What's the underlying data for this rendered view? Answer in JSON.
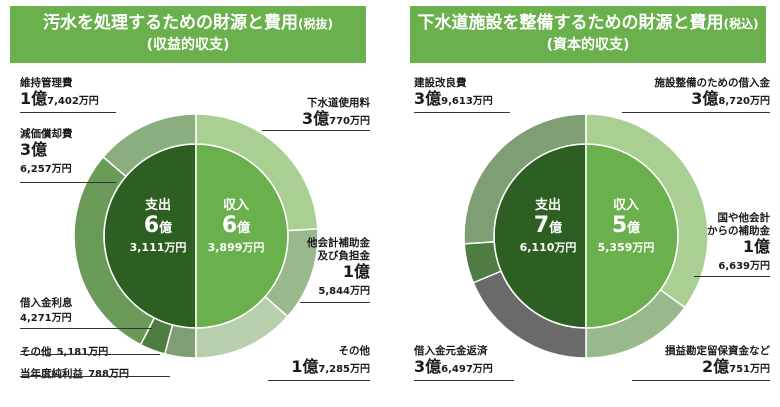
{
  "left_panel": {
    "title_main": "汚水を処理するための財源と費用",
    "title_tax": "(税抜)",
    "title_sub": "(収益的収支)",
    "expense_center": {
      "label": "支出",
      "oku": "6",
      "oku_unit": "億",
      "man": "3,111万円"
    },
    "income_center": {
      "label": "収入",
      "oku": "6",
      "oku_unit": "億",
      "man": "3,899万円"
    },
    "labels": {
      "maint_name": "維持管理費",
      "maint_oku": "1億",
      "maint_man": "7,402万円",
      "depr_name": "減価償却費",
      "depr_oku": "3億",
      "depr_man": "6,257万円",
      "loan_interest_name": "借入金利息",
      "loan_interest_man": "4,271万円",
      "other_exp_name": "その他",
      "other_exp_man": "5,181万円",
      "profit_name": "当年度純利益",
      "profit_man": "788万円",
      "sewer_fee_name": "下水道使用料",
      "sewer_fee_oku": "3億",
      "sewer_fee_man": "770万円",
      "subsidy_name1": "他会計補助金",
      "subsidy_name2": "及び負担金",
      "subsidy_oku": "1億",
      "subsidy_man": "5,844万円",
      "other_inc_name": "その他",
      "other_inc_oku": "1億",
      "other_inc_man": "7,285万円"
    }
  },
  "right_panel": {
    "title_main": "下水道施設を整備するための財源と費用",
    "title_tax": "(税込)",
    "title_sub": "(資本的収支)",
    "expense_center": {
      "label": "支出",
      "oku": "7",
      "oku_unit": "億",
      "man": "6,110万円"
    },
    "income_center": {
      "label": "収入",
      "oku": "5",
      "oku_unit": "億",
      "man": "5,359万円"
    },
    "labels": {
      "construction_name": "建設改良費",
      "construction_oku": "3億",
      "construction_man": "9,613万円",
      "repay_name": "借入金元金返済",
      "repay_oku": "3億",
      "repay_man": "6,497万円",
      "facility_loan_name": "施設整備のための借入金",
      "facility_loan_oku": "3億",
      "facility_loan_man": "8,720万円",
      "gov_subsidy_name1": "国や他会計",
      "gov_subsidy_name2": "からの補助金",
      "gov_subsidy_oku": "1億",
      "gov_subsidy_man": "6,639万円",
      "reserve_name": "損益勘定留保資金など",
      "reserve_oku": "2億",
      "reserve_man": "751万円"
    }
  },
  "colors": {
    "header_bg": "#6ab04c",
    "inner_expense": "#2e5f22",
    "inner_income": "#6ab04c",
    "reserve": "#6a6a6a"
  },
  "chart_data": [
    {
      "type": "pie",
      "title": "汚水を処理するための財源と費用(税抜)(収益的収支)",
      "groups": [
        {
          "name": "支出",
          "total": 63111,
          "unit": "万円",
          "slices": [
            {
              "label": "維持管理費",
              "value": 17402,
              "color": "#8aae7e"
            },
            {
              "label": "減価償却費",
              "value": 36257,
              "color": "#6a9a58"
            },
            {
              "label": "借入金利息",
              "value": 4271,
              "color": "#4f7c42"
            },
            {
              "label": "その他",
              "value": 5181,
              "color": "#7f9e73"
            },
            {
              "label": "当年度純利益",
              "value": 788,
              "color": "#3c6530"
            }
          ]
        },
        {
          "name": "収入",
          "total": 63899,
          "unit": "万円",
          "slices": [
            {
              "label": "下水道使用料",
              "value": 30770,
              "color": "#a9cf93"
            },
            {
              "label": "他会計補助金及び負担金",
              "value": 15844,
              "color": "#99b88c"
            },
            {
              "label": "その他",
              "value": 17285,
              "color": "#b8cfae"
            }
          ]
        }
      ]
    },
    {
      "type": "pie",
      "title": "下水道施設を整備するための財源と費用(税込)(資本的収支)",
      "groups": [
        {
          "name": "支出",
          "total": 76110,
          "unit": "万円",
          "slices": [
            {
              "label": "建設改良費",
              "value": 39613,
              "color": "#7f9e73"
            },
            {
              "label": "借入金元金返済",
              "value": 36497,
              "color": "#4f7c42"
            }
          ]
        },
        {
          "name": "収入",
          "total": 55359,
          "unit": "万円",
          "slices": [
            {
              "label": "施設整備のための借入金",
              "value": 38720,
              "color": "#a9cf93"
            },
            {
              "label": "国や他会計からの補助金",
              "value": 16639,
              "color": "#99b88c"
            },
            {
              "label": "損益勘定留保資金など",
              "value": 20751,
              "color": "#6a6a6a"
            }
          ]
        }
      ]
    }
  ]
}
